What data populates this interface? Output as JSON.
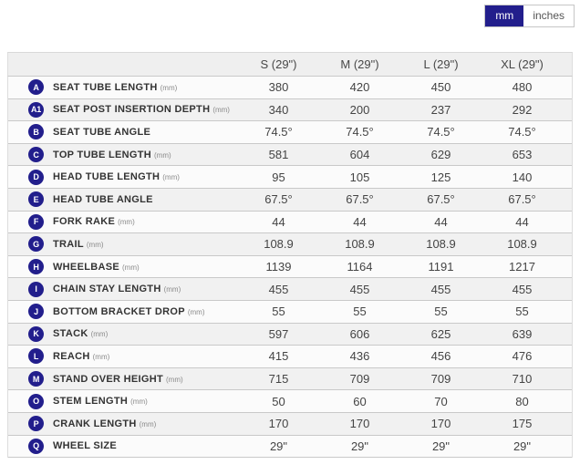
{
  "unit_toggle": {
    "selected": "mm",
    "options": [
      "mm",
      "inches"
    ]
  },
  "colors": {
    "accent_navy": "#221e8c",
    "header_bg": "#efefef",
    "row_alt_bg": "#f1f1f1",
    "row_bg": "#fbfbfb",
    "separator": "#c9c9c9",
    "value_text": "#444444",
    "label_text": "#333333"
  },
  "table": {
    "columns": [
      "S (29\")",
      "M (29\")",
      "L (29\")",
      "XL (29\")"
    ],
    "rows": [
      {
        "badge": "A",
        "label": "SEAT TUBE LENGTH",
        "unit": "(mm)",
        "values": [
          "380",
          "420",
          "450",
          "480"
        ]
      },
      {
        "badge": "A1",
        "label": "SEAT POST INSERTION DEPTH",
        "unit": "(mm)",
        "values": [
          "340",
          "200",
          "237",
          "292"
        ]
      },
      {
        "badge": "B",
        "label": "SEAT TUBE ANGLE",
        "unit": "",
        "values": [
          "74.5°",
          "74.5°",
          "74.5°",
          "74.5°"
        ]
      },
      {
        "badge": "C",
        "label": "TOP TUBE LENGTH",
        "unit": "(mm)",
        "values": [
          "581",
          "604",
          "629",
          "653"
        ]
      },
      {
        "badge": "D",
        "label": "HEAD TUBE LENGTH",
        "unit": "(mm)",
        "values": [
          "95",
          "105",
          "125",
          "140"
        ]
      },
      {
        "badge": "E",
        "label": "HEAD TUBE ANGLE",
        "unit": "",
        "values": [
          "67.5°",
          "67.5°",
          "67.5°",
          "67.5°"
        ]
      },
      {
        "badge": "F",
        "label": "FORK RAKE",
        "unit": "(mm)",
        "values": [
          "44",
          "44",
          "44",
          "44"
        ]
      },
      {
        "badge": "G",
        "label": "TRAIL",
        "unit": "(mm)",
        "values": [
          "108.9",
          "108.9",
          "108.9",
          "108.9"
        ]
      },
      {
        "badge": "H",
        "label": "WHEELBASE",
        "unit": "(mm)",
        "values": [
          "1139",
          "1164",
          "1191",
          "1217"
        ]
      },
      {
        "badge": "I",
        "label": "CHAIN STAY LENGTH",
        "unit": "(mm)",
        "values": [
          "455",
          "455",
          "455",
          "455"
        ]
      },
      {
        "badge": "J",
        "label": "BOTTOM BRACKET DROP",
        "unit": "(mm)",
        "values": [
          "55",
          "55",
          "55",
          "55"
        ]
      },
      {
        "badge": "K",
        "label": "STACK",
        "unit": "(mm)",
        "values": [
          "597",
          "606",
          "625",
          "639"
        ]
      },
      {
        "badge": "L",
        "label": "REACH",
        "unit": "(mm)",
        "values": [
          "415",
          "436",
          "456",
          "476"
        ]
      },
      {
        "badge": "M",
        "label": "STAND OVER HEIGHT",
        "unit": "(mm)",
        "values": [
          "715",
          "709",
          "709",
          "710"
        ]
      },
      {
        "badge": "O",
        "label": "STEM LENGTH",
        "unit": "(mm)",
        "values": [
          "50",
          "60",
          "70",
          "80"
        ]
      },
      {
        "badge": "P",
        "label": "CRANK LENGTH",
        "unit": "(mm)",
        "values": [
          "170",
          "170",
          "170",
          "175"
        ]
      },
      {
        "badge": "Q",
        "label": "WHEEL SIZE",
        "unit": "",
        "values": [
          "29\"",
          "29\"",
          "29\"",
          "29\""
        ]
      }
    ]
  }
}
